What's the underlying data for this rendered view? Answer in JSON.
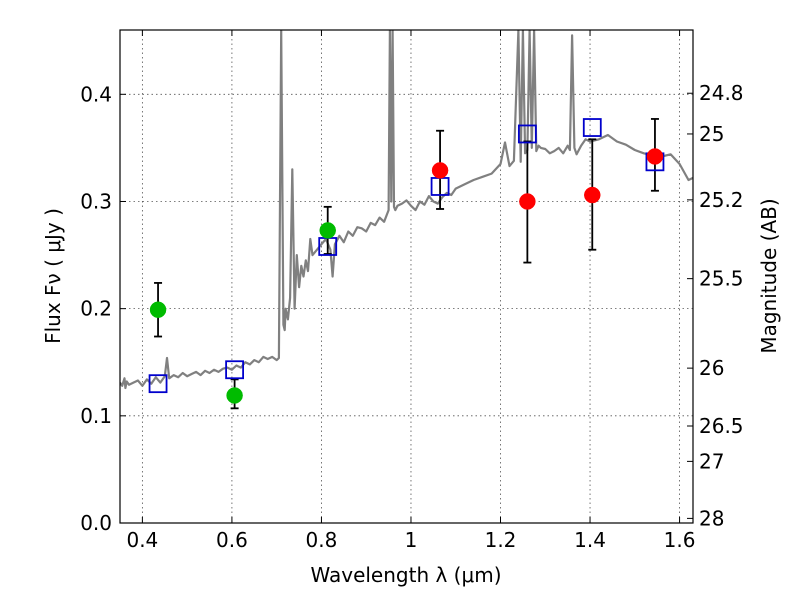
{
  "chart_data": {
    "type": "scatter",
    "xlabel": "Wavelength  λ (μm)",
    "ylabel": "Flux  Fν  ( μJy )",
    "ylabel_right": "Magnitude (AB)",
    "xlim": [
      0.35,
      1.63
    ],
    "ylim": [
      0.0,
      0.46
    ],
    "grid": true,
    "x_ticks": [
      0.4,
      0.6,
      0.8,
      1.0,
      1.2,
      1.4,
      1.6
    ],
    "x_tick_labels": [
      "0.4",
      "0.6",
      "0.8",
      "1",
      "1.2",
      "1.4",
      "1.6"
    ],
    "y_ticks": [
      0.0,
      0.1,
      0.2,
      0.3,
      0.4
    ],
    "y_tick_labels": [
      "0.0",
      "0.1",
      "0.2",
      "0.3",
      "0.4"
    ],
    "right_ticks": [
      {
        "flux": 0.0043,
        "label": "28"
      },
      {
        "flux": 0.0575,
        "label": "27"
      },
      {
        "flux": 0.0905,
        "label": "26.5"
      },
      {
        "flux": 0.1445,
        "label": "26"
      },
      {
        "flux": 0.228,
        "label": "25.5"
      },
      {
        "flux": 0.3015,
        "label": "25.2"
      },
      {
        "flux": 0.363,
        "label": "25"
      },
      {
        "flux": 0.401,
        "label": "24.8"
      }
    ],
    "colors": {
      "model": "#808080",
      "green": "#00bb00",
      "red": "#ff0000",
      "model_box": "#0000cc",
      "errorbar": "#000000",
      "grid": "#555555"
    },
    "series": [
      {
        "marker": "circle",
        "color": "green",
        "x": [
          0.435,
          0.606,
          0.814
        ],
        "y": [
          0.199,
          0.119,
          0.273
        ],
        "yerr_low": [
          0.025,
          0.012,
          0.022
        ],
        "yerr_high": [
          0.025,
          0.015,
          0.022
        ]
      },
      {
        "marker": "circle",
        "color": "red",
        "x": [
          1.065,
          1.26,
          1.405,
          1.545
        ],
        "y": [
          0.329,
          0.3,
          0.306,
          0.342
        ],
        "yerr_low": [
          0.036,
          0.057,
          0.051,
          0.032
        ],
        "yerr_high": [
          0.037,
          0.056,
          0.052,
          0.035
        ]
      },
      {
        "marker": "open-square",
        "color": "model_box",
        "x": [
          0.435,
          0.606,
          0.814,
          1.065,
          1.26,
          1.405,
          1.545
        ],
        "y": [
          0.13,
          0.143,
          0.258,
          0.314,
          0.363,
          0.369,
          0.337
        ]
      }
    ],
    "model_spectrum": {
      "color": "model",
      "x": [
        0.35,
        0.355,
        0.36,
        0.362,
        0.365,
        0.37,
        0.38,
        0.39,
        0.4,
        0.41,
        0.42,
        0.43,
        0.44,
        0.45,
        0.455,
        0.46,
        0.47,
        0.48,
        0.49,
        0.5,
        0.51,
        0.52,
        0.53,
        0.54,
        0.55,
        0.56,
        0.57,
        0.58,
        0.59,
        0.6,
        0.61,
        0.62,
        0.63,
        0.64,
        0.65,
        0.66,
        0.67,
        0.68,
        0.69,
        0.7,
        0.705,
        0.71,
        0.715,
        0.718,
        0.72,
        0.725,
        0.73,
        0.735,
        0.74,
        0.745,
        0.75,
        0.755,
        0.76,
        0.765,
        0.77,
        0.775,
        0.78,
        0.79,
        0.8,
        0.81,
        0.82,
        0.825,
        0.83,
        0.84,
        0.85,
        0.86,
        0.87,
        0.88,
        0.89,
        0.9,
        0.91,
        0.92,
        0.93,
        0.94,
        0.95,
        0.953,
        0.956,
        0.959,
        0.962,
        0.965,
        0.97,
        0.98,
        0.99,
        1.0,
        1.01,
        1.02,
        1.03,
        1.04,
        1.05,
        1.06,
        1.07,
        1.08,
        1.09,
        1.1,
        1.12,
        1.14,
        1.16,
        1.18,
        1.2,
        1.21,
        1.22,
        1.23,
        1.24,
        1.245,
        1.25,
        1.255,
        1.26,
        1.265,
        1.27,
        1.275,
        1.28,
        1.285,
        1.29,
        1.3,
        1.31,
        1.32,
        1.33,
        1.34,
        1.35,
        1.355,
        1.36,
        1.365,
        1.37,
        1.38,
        1.39,
        1.4,
        1.42,
        1.44,
        1.46,
        1.48,
        1.5,
        1.52,
        1.54,
        1.56,
        1.58,
        1.6,
        1.62,
        1.63
      ],
      "y": [
        0.131,
        0.128,
        0.135,
        0.126,
        0.132,
        0.129,
        0.131,
        0.133,
        0.128,
        0.134,
        0.13,
        0.136,
        0.131,
        0.137,
        0.154,
        0.135,
        0.138,
        0.136,
        0.14,
        0.137,
        0.139,
        0.141,
        0.138,
        0.142,
        0.14,
        0.143,
        0.141,
        0.144,
        0.145,
        0.143,
        0.147,
        0.145,
        0.15,
        0.148,
        0.152,
        0.15,
        0.155,
        0.153,
        0.155,
        0.152,
        0.154,
        0.46,
        0.185,
        0.18,
        0.2,
        0.19,
        0.21,
        0.33,
        0.2,
        0.25,
        0.22,
        0.24,
        0.23,
        0.245,
        0.235,
        0.265,
        0.25,
        0.255,
        0.26,
        0.265,
        0.255,
        0.23,
        0.26,
        0.268,
        0.262,
        0.272,
        0.268,
        0.276,
        0.275,
        0.272,
        0.28,
        0.278,
        0.285,
        0.281,
        0.292,
        0.46,
        0.3,
        0.46,
        0.295,
        0.292,
        0.296,
        0.298,
        0.301,
        0.296,
        0.292,
        0.3,
        0.297,
        0.305,
        0.3,
        0.298,
        0.304,
        0.308,
        0.306,
        0.312,
        0.316,
        0.32,
        0.323,
        0.326,
        0.335,
        0.355,
        0.333,
        0.338,
        0.46,
        0.337,
        0.46,
        0.345,
        0.348,
        0.46,
        0.35,
        0.46,
        0.347,
        0.352,
        0.35,
        0.349,
        0.345,
        0.347,
        0.35,
        0.345,
        0.352,
        0.348,
        0.455,
        0.35,
        0.344,
        0.352,
        0.358,
        0.356,
        0.358,
        0.362,
        0.356,
        0.353,
        0.348,
        0.345,
        0.343,
        0.342,
        0.344,
        0.335,
        0.32,
        0.322
      ]
    }
  }
}
